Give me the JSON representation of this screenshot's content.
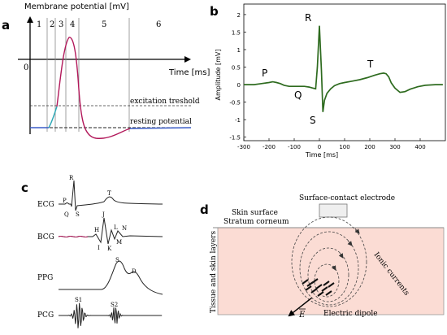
{
  "panel_a": {
    "label": "a",
    "ylabel": "Membrane potential [mV]",
    "xlabel": "Time [ms]",
    "origin": "0",
    "phases": [
      "1",
      "2",
      "3",
      "4",
      "5",
      "6"
    ],
    "threshold_label": "excitation treshold",
    "resting_label": "resting potential"
  },
  "panel_b": {
    "label": "b",
    "ylabel": "Amplitude [mV]",
    "xlabel": "Time [ms]",
    "wave_labels": [
      "P",
      "Q",
      "R",
      "S",
      "T"
    ],
    "chart_data": {
      "type": "line",
      "xlim": [
        -300,
        500
      ],
      "ylim": [
        -1.6,
        2.3
      ],
      "x_ticks": [
        "-300",
        "-200",
        "-100",
        "0",
        "100",
        "200",
        "300",
        "400"
      ],
      "y_ticks": [
        "2",
        "1.5",
        "1",
        "0.5",
        "0",
        "-0.5",
        "-1",
        "-1.5"
      ],
      "color": "#2e6b1f",
      "grid": false,
      "series": [
        {
          "x": [
            -300,
            -260,
            -230,
            -200,
            -185,
            -170,
            -155,
            -140,
            -120,
            -100,
            -80,
            -60,
            -40,
            -25,
            -15,
            -8,
            0,
            8,
            14,
            20,
            30,
            45,
            60,
            80,
            100,
            130,
            160,
            190,
            220,
            240,
            255,
            265,
            275,
            285,
            300,
            320,
            340,
            360,
            390,
            420,
            460,
            490
          ],
          "y": [
            0.0,
            0.0,
            0.03,
            0.06,
            0.08,
            0.06,
            0.03,
            -0.02,
            -0.05,
            -0.05,
            -0.05,
            -0.05,
            -0.07,
            -0.1,
            -0.12,
            0.5,
            1.68,
            0.4,
            -0.78,
            -0.45,
            -0.25,
            -0.12,
            -0.03,
            0.03,
            0.06,
            0.1,
            0.14,
            0.2,
            0.27,
            0.31,
            0.33,
            0.31,
            0.22,
            0.05,
            -0.1,
            -0.22,
            -0.2,
            -0.13,
            -0.06,
            -0.02,
            0.0,
            0.0
          ]
        }
      ]
    }
  },
  "panel_c": {
    "label": "c",
    "rows": [
      "ECG",
      "BCG",
      "PPG",
      "PCG"
    ],
    "ecg_labels": [
      "P",
      "Q",
      "R",
      "S",
      "T"
    ],
    "bcg_labels": [
      "H",
      "I",
      "J",
      "K",
      "L",
      "M",
      "N"
    ],
    "ppg_labels": [
      "S",
      "D"
    ],
    "pcg_labels": [
      "S1",
      "S2"
    ]
  },
  "panel_d": {
    "label": "d",
    "electrode_label": "Surface-contact electrode",
    "skin_surface": "Skin surface",
    "stratum": "Stratum corneum",
    "side_label": "Tissue and skin layers",
    "ionic": "Ionic currents",
    "dipole": "Electric dipole",
    "vector": "E",
    "tissue_color": "#fbdcd4"
  }
}
